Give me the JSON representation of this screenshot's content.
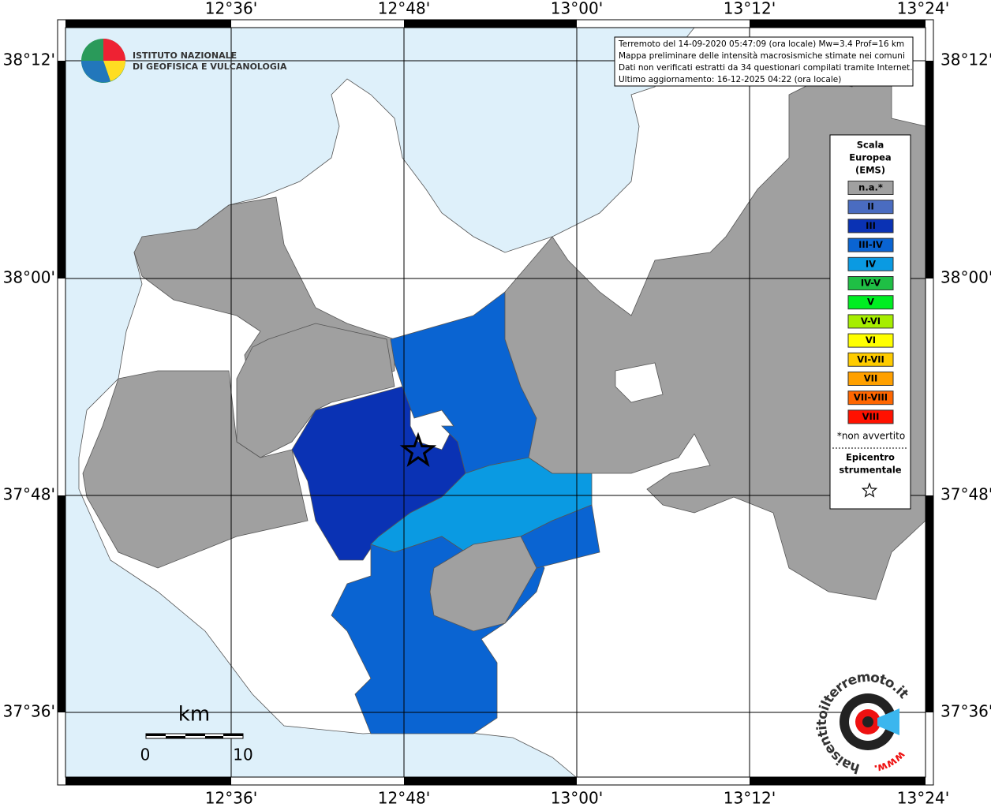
{
  "header": {
    "institute": [
      "ISTITUTO NAZIONALE",
      "DI GEOFISICA E VULCANOLOGIA"
    ]
  },
  "info_box": {
    "lines": [
      "Terremoto del 14-09-2020 05:47:09 (ora locale) Mw=3.4 Prof=16 km",
      "Mappa preliminare delle intensità macrosismiche stimate nei comuni",
      "Dati non verificati estratti da 34 questionari compilati tramite Internet.",
      "Ultimo aggiornamento: 16-12-2025 04:22 (ora locale)"
    ]
  },
  "axes": {
    "longitudes": [
      "12°36'",
      "12°48'",
      "13°00'",
      "13°12'",
      "13°24'"
    ],
    "latitudes": [
      "38°12'",
      "38°00'",
      "37°48'",
      "37°36'"
    ]
  },
  "legend": {
    "title": [
      "Scala",
      "Europea",
      "(EMS)"
    ],
    "items": [
      {
        "label": "n.a.*",
        "color": "#a0a0a0"
      },
      {
        "label": "II",
        "color": "#4a6cc0"
      },
      {
        "label": "III",
        "color": "#0a32b4"
      },
      {
        "label": "III-IV",
        "color": "#0a64d2"
      },
      {
        "label": "IV",
        "color": "#0a9ae2"
      },
      {
        "label": "IV-V",
        "color": "#1fbf45"
      },
      {
        "label": "V",
        "color": "#00ee22"
      },
      {
        "label": "V-VI",
        "color": "#a6ee00"
      },
      {
        "label": "VI",
        "color": "#ffff00"
      },
      {
        "label": "VI-VII",
        "color": "#ffcc00"
      },
      {
        "label": "VII",
        "color": "#ffa000"
      },
      {
        "label": "VII-VIII",
        "color": "#ff6600"
      },
      {
        "label": "VIII",
        "color": "#ff1100"
      }
    ],
    "note": "*non avvertito",
    "epicenter_title": [
      "Epicentro",
      "strumentale"
    ]
  },
  "scale_bar": {
    "unit": "km",
    "ticks": [
      "0",
      "10"
    ]
  },
  "watermark": {
    "site": "haisentitoilterremoto.it",
    "prefix": "www."
  }
}
